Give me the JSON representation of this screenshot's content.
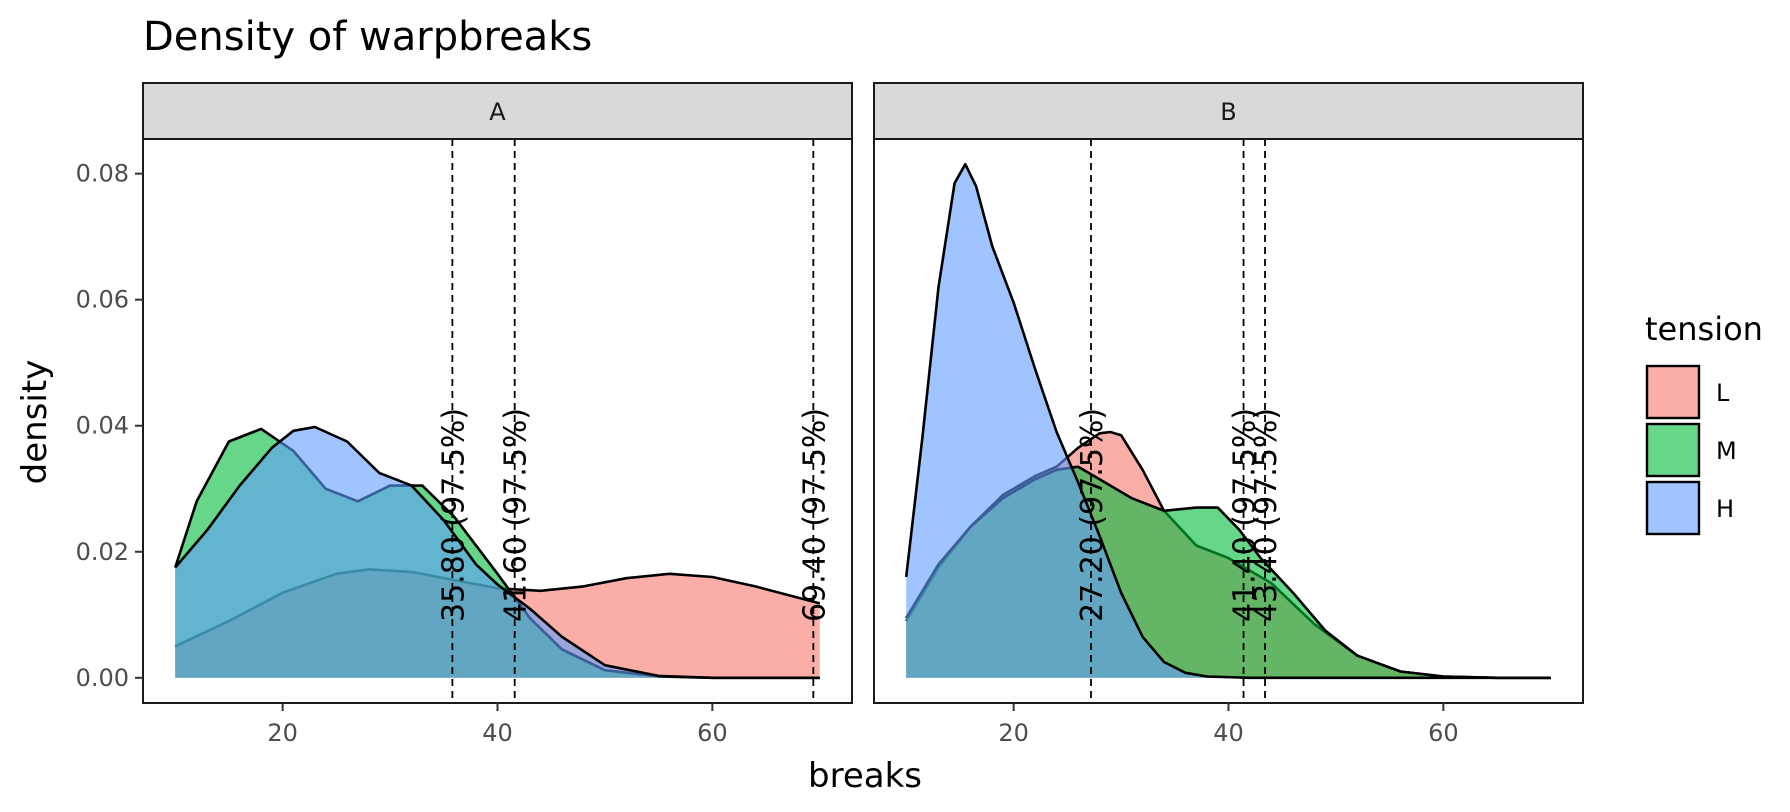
{
  "chart_data": {
    "type": "area",
    "subtype": "density",
    "title": "Density of warpbreaks",
    "xlabel": "breaks",
    "ylabel": "density",
    "xlim": [
      7,
      73
    ],
    "ylim": [
      -0.004,
      0.0855
    ],
    "x_ticks": [
      20,
      40,
      60
    ],
    "y_ticks": [
      0.0,
      0.02,
      0.04,
      0.06,
      0.08
    ],
    "y_tick_labels": [
      "0.00",
      "0.02",
      "0.04",
      "0.06",
      "0.08"
    ],
    "grid": false,
    "legend": {
      "title": "tension",
      "position": "right",
      "items": [
        {
          "label": "L",
          "color": "#F8766D"
        },
        {
          "label": "M",
          "color": "#00BA38"
        },
        {
          "label": "H",
          "color": "#619CFF"
        }
      ]
    },
    "fill_alpha": 0.6,
    "panels": [
      {
        "facet": "A",
        "series": [
          {
            "name": "L",
            "color": "#F8766D",
            "x": [
              10,
              15,
              20,
              25,
              28,
              32,
              36,
              40,
              44,
              48,
              52,
              56,
              60,
              64,
              70
            ],
            "y": [
              0.005,
              0.009,
              0.0135,
              0.0165,
              0.0172,
              0.0168,
              0.0155,
              0.0142,
              0.0138,
              0.0145,
              0.0158,
              0.0165,
              0.016,
              0.0145,
              0.0118
            ]
          },
          {
            "name": "M",
            "color": "#00BA38",
            "x": [
              10,
              12,
              15,
              18,
              21,
              24,
              27,
              30,
              33,
              36,
              40,
              43,
              46,
              50,
              55,
              60,
              65,
              70
            ],
            "y": [
              0.0175,
              0.028,
              0.0375,
              0.0395,
              0.036,
              0.03,
              0.028,
              0.0305,
              0.0305,
              0.0255,
              0.0165,
              0.0095,
              0.0045,
              0.0012,
              0.0002,
              0.0,
              0.0,
              0.0
            ]
          },
          {
            "name": "H",
            "color": "#619CFF",
            "x": [
              10,
              13,
              16,
              19,
              21,
              23,
              26,
              29,
              32,
              35,
              38,
              40,
              43,
              46,
              50,
              55,
              60,
              65,
              70
            ],
            "y": [
              0.0175,
              0.0235,
              0.0305,
              0.0365,
              0.0392,
              0.0398,
              0.0375,
              0.0325,
              0.0305,
              0.025,
              0.018,
              0.0148,
              0.011,
              0.0065,
              0.002,
              0.0003,
              0.0,
              0.0,
              0.0
            ]
          }
        ],
        "vlines": [
          {
            "x": 35.8,
            "label": "35.80 (97.5%)"
          },
          {
            "x": 41.6,
            "label": "41.60 (97.5%)"
          },
          {
            "x": 69.4,
            "label": "69.40 (97.5%)"
          }
        ]
      },
      {
        "facet": "B",
        "series": [
          {
            "name": "L",
            "color": "#F8766D",
            "x": [
              10,
              13,
              16,
              19,
              22,
              24,
              26,
              28,
              29,
              30,
              32,
              34,
              37,
              40,
              44,
              48,
              52,
              56,
              60,
              65,
              70
            ],
            "y": [
              0.009,
              0.0175,
              0.024,
              0.029,
              0.032,
              0.0335,
              0.0365,
              0.0388,
              0.039,
              0.0385,
              0.033,
              0.0265,
              0.021,
              0.019,
              0.015,
              0.0085,
              0.0035,
              0.001,
              0.0002,
              0.0,
              0.0
            ]
          },
          {
            "name": "M",
            "color": "#00BA38",
            "x": [
              10,
              13,
              16,
              19,
              22,
              24,
              26,
              28,
              31,
              34,
              37,
              39,
              41,
              43,
              46,
              49,
              52,
              56,
              60,
              65,
              70
            ],
            "y": [
              0.0095,
              0.018,
              0.024,
              0.0285,
              0.0315,
              0.033,
              0.0335,
              0.0315,
              0.0285,
              0.0265,
              0.027,
              0.027,
              0.0235,
              0.019,
              0.0135,
              0.0075,
              0.0035,
              0.001,
              0.0002,
              0.0,
              0.0
            ]
          },
          {
            "name": "H",
            "color": "#619CFF",
            "x": [
              10,
              11.5,
              13,
              14.5,
              15.5,
              16.5,
              18,
              20,
              22,
              24,
              26,
              28,
              30,
              32,
              34,
              36,
              38,
              42,
              50,
              60,
              70
            ],
            "y": [
              0.016,
              0.038,
              0.062,
              0.0785,
              0.0815,
              0.078,
              0.0685,
              0.0595,
              0.049,
              0.039,
              0.031,
              0.0225,
              0.0135,
              0.0065,
              0.0025,
              0.0008,
              0.0002,
              0.0,
              0.0,
              0.0,
              0.0
            ]
          }
        ],
        "vlines": [
          {
            "x": 27.2,
            "label": "27.20 (97.5%)"
          },
          {
            "x": 41.4,
            "label": "41.40 (97.5%)"
          },
          {
            "x": 43.4,
            "label": "43.40 (97.5%)"
          }
        ]
      }
    ]
  }
}
